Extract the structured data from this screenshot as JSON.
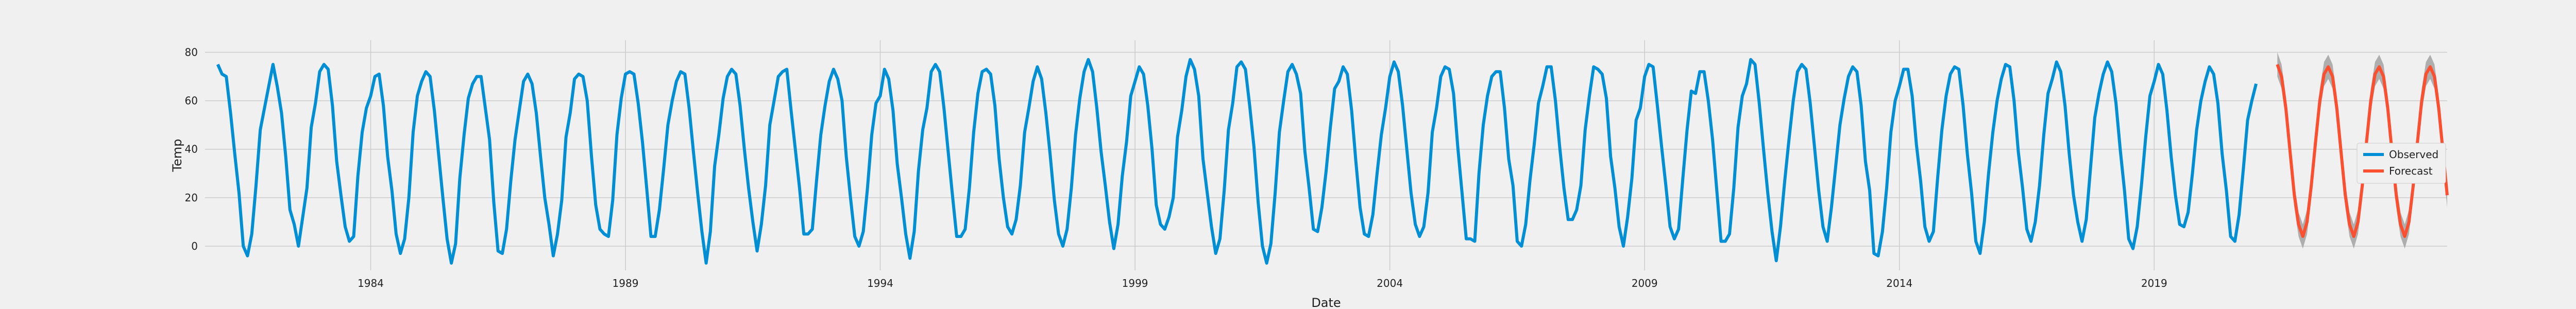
{
  "chart_data": {
    "type": "line",
    "xlabel": "Date",
    "ylabel": "Temp",
    "xlim": [
      1980.75,
      2024.75
    ],
    "ylim": [
      -10,
      85
    ],
    "grid": true,
    "legend_position": "right",
    "x_ticks": [
      1984,
      1989,
      1994,
      1999,
      2004,
      2009,
      2014,
      2019
    ],
    "y_ticks": [
      0,
      20,
      40,
      60,
      80
    ],
    "colors": {
      "observed": "#008fd5",
      "forecast": "#fc4f30",
      "band": "#9e9e9e"
    },
    "start_date": "1981-01",
    "series": [
      {
        "name": "Observed",
        "frequency": "monthly",
        "values": [
          75,
          71,
          70,
          55,
          38,
          22,
          0,
          -4,
          5,
          25,
          48,
          57,
          66,
          75,
          66,
          55,
          37,
          15,
          9,
          0,
          12,
          24,
          49,
          59,
          72,
          75,
          73,
          58,
          35,
          21,
          8,
          2,
          4,
          29,
          47,
          57,
          62,
          70,
          71,
          58,
          37,
          23,
          5,
          -3,
          3,
          20,
          47,
          62,
          68,
          72,
          70,
          56,
          38,
          20,
          3,
          -7,
          1,
          28,
          46,
          61,
          67,
          70,
          70,
          57,
          44,
          18,
          -2,
          -3,
          7,
          27,
          44,
          56,
          68,
          71,
          67,
          55,
          37,
          20,
          9,
          -4,
          5,
          19,
          45,
          55,
          69,
          71,
          70,
          60,
          37,
          17,
          7,
          5,
          4,
          19,
          46,
          61,
          71,
          72,
          71,
          59,
          43,
          24,
          4,
          4,
          15,
          32,
          50,
          60,
          68,
          72,
          71,
          57,
          39,
          22,
          6,
          -7,
          6,
          33,
          46,
          61,
          70,
          73,
          71,
          58,
          40,
          24,
          10,
          -2,
          9,
          25,
          50,
          60,
          70,
          72,
          73,
          56,
          40,
          24,
          5,
          5,
          7,
          27,
          46,
          58,
          68,
          73,
          69,
          60,
          37,
          20,
          4,
          0,
          6,
          24,
          46,
          59,
          62,
          73,
          69,
          56,
          34,
          20,
          5,
          -5,
          6,
          31,
          48,
          57,
          72,
          75,
          72,
          57,
          39,
          21,
          4,
          4,
          7,
          24,
          47,
          63,
          72,
          73,
          71,
          58,
          36,
          20,
          8,
          5,
          11,
          25,
          47,
          57,
          68,
          74,
          69,
          55,
          38,
          19,
          5,
          0,
          7,
          24,
          46,
          61,
          72,
          77,
          72,
          57,
          39,
          25,
          10,
          -1,
          9,
          29,
          43,
          62,
          68,
          74,
          71,
          58,
          40,
          17,
          9,
          7,
          12,
          20,
          45,
          56,
          70,
          77,
          73,
          62,
          36,
          22,
          8,
          -3,
          3,
          23,
          48,
          59,
          74,
          76,
          73,
          58,
          41,
          18,
          0,
          -7,
          1,
          22,
          47,
          60,
          72,
          75,
          71,
          63,
          39,
          24,
          7,
          6,
          16,
          31,
          49,
          65,
          68,
          74,
          71,
          56,
          35,
          16,
          5,
          4,
          13,
          30,
          46,
          57,
          70,
          76,
          72,
          58,
          40,
          22,
          9,
          4,
          8,
          22,
          47,
          57,
          70,
          74,
          73,
          63,
          41,
          22,
          3,
          3,
          2,
          30,
          50,
          62,
          70,
          72,
          72,
          57,
          36,
          25,
          2,
          0,
          9,
          27,
          42,
          59,
          66,
          74,
          74,
          60,
          41,
          24,
          11,
          11,
          15,
          25,
          48,
          62,
          74,
          73,
          71,
          61,
          37,
          24,
          8,
          0,
          12,
          28,
          52,
          57,
          70,
          75,
          74,
          58,
          41,
          25,
          8,
          3,
          7,
          28,
          48,
          64,
          63,
          72,
          72,
          60,
          44,
          23,
          2,
          2,
          5,
          24,
          49,
          62,
          67,
          77,
          75,
          59,
          40,
          22,
          6,
          -6,
          8,
          27,
          44,
          60,
          72,
          75,
          73,
          59,
          41,
          23,
          8,
          2,
          16,
          33,
          50,
          61,
          70,
          74,
          72,
          58,
          35,
          23,
          -3,
          -4,
          6,
          24,
          47,
          60,
          66,
          73,
          73,
          62,
          42,
          27,
          8,
          2,
          6,
          28,
          48,
          62,
          71,
          74,
          73,
          58,
          38,
          22,
          2,
          -3,
          10,
          30,
          47,
          60,
          69,
          75,
          74,
          60,
          39,
          24,
          7,
          2,
          10,
          25,
          46,
          63,
          69,
          76,
          72,
          58,
          38,
          21,
          10,
          2,
          11,
          32,
          53,
          63,
          71,
          76,
          72,
          59,
          40,
          23,
          3,
          -1,
          8,
          25,
          45,
          62,
          68,
          75,
          71,
          56,
          37,
          21,
          9,
          8,
          14,
          30,
          48,
          60,
          68,
          74,
          71,
          59,
          38,
          23,
          4,
          2,
          13,
          32,
          52,
          60,
          67
        ]
      },
      {
        "name": "Forecast",
        "frequency": "monthly",
        "start_date": "2021-06",
        "values": [
          75,
          70,
          57,
          39,
          21,
          9,
          4,
          10,
          25,
          43,
          60,
          71,
          74,
          70,
          57,
          39,
          21,
          9,
          4,
          10,
          25,
          43,
          60,
          71,
          74,
          70,
          57,
          39,
          21,
          9,
          4,
          10,
          25,
          43,
          60,
          71,
          74,
          70,
          57,
          39,
          21
        ],
        "band": 5
      }
    ]
  }
}
